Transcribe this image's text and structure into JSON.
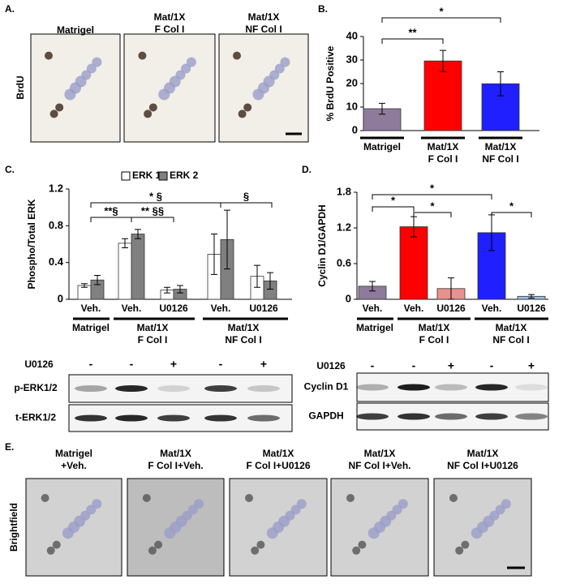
{
  "panel_labels": [
    "A.",
    "B.",
    "C.",
    "D.",
    "E."
  ],
  "panel_a": {
    "row_label": "BrdU",
    "titles": [
      "Matrigel",
      "Mat/1X\nF Col I",
      "Mat/1X\nNF Col I"
    ]
  },
  "chart_data": [
    {
      "type": "bar",
      "ylabel": "% BrdU Positive",
      "categories": [
        "Matrigel",
        "Mat/1X\nF Col I",
        "Mat/1X\nNF Col I"
      ],
      "series": [
        {
          "values": [
            9.3,
            29.6,
            19.9
          ],
          "errors": [
            2.3,
            4.5,
            5.1
          ],
          "colors": [
            "#8e7b9c",
            "#ff0000",
            "#1f1fff"
          ]
        }
      ],
      "ylim": [
        0,
        40
      ],
      "yticks": [
        0,
        10,
        20,
        30,
        40
      ],
      "annotations": [
        "**",
        "*"
      ]
    },
    {
      "type": "bar",
      "ylabel": "Phospho/Total ERK",
      "categories": [
        "Veh.",
        "Veh.",
        "U0126",
        "Veh.",
        "U0126"
      ],
      "groups": [
        "Matrigel",
        "Mat/1X\nF Col I",
        "Mat/1X\nNF Col I"
      ],
      "series": [
        {
          "name": "ERK 1",
          "color": "#ffffff",
          "values": [
            0.15,
            0.61,
            0.1,
            0.49,
            0.25
          ],
          "errors": [
            0.02,
            0.05,
            0.03,
            0.22,
            0.12
          ]
        },
        {
          "name": "ERK 2",
          "color": "#808080",
          "values": [
            0.21,
            0.71,
            0.11,
            0.65,
            0.2
          ],
          "errors": [
            0.05,
            0.05,
            0.04,
            0.32,
            0.09
          ]
        }
      ],
      "ylim": [
        0,
        1.2
      ],
      "yticks": [
        0,
        0.4,
        0.8,
        1.2
      ],
      "annotations": [
        "* §",
        "**§",
        "** §§",
        "§"
      ]
    },
    {
      "type": "bar",
      "ylabel": "Cyclin D1/GAPDH",
      "categories": [
        "Veh.",
        "Veh.",
        "U0126",
        "Veh.",
        "U0126"
      ],
      "groups": [
        "Matrigel",
        "Mat/1X\nF Col I",
        "Mat/1X\nNF Col I"
      ],
      "series": [
        {
          "values": [
            0.22,
            1.22,
            0.18,
            1.12,
            0.05
          ],
          "errors": [
            0.08,
            0.17,
            0.18,
            0.3,
            0.03
          ],
          "colors": [
            "#8e7b9c",
            "#ff0000",
            "#e8928f",
            "#1f1fff",
            "#9dbfe0"
          ]
        }
      ],
      "ylim": [
        0,
        1.8
      ],
      "yticks": [
        0,
        0.6,
        1.2,
        1.8
      ],
      "annotations": [
        "*",
        "*",
        "*",
        "*"
      ]
    }
  ],
  "blots": {
    "treatment_label": "U0126",
    "signs": [
      "-",
      "-",
      "+",
      "-",
      "+"
    ],
    "erk_rows": [
      "p-ERK1/2",
      "t-ERK1/2"
    ],
    "cyclin_rows": [
      "Cyclin D1",
      "GAPDH"
    ]
  },
  "panel_e": {
    "row_label": "Brightfield",
    "titles": [
      "Matrigel\n+Veh.",
      "Mat/1X\nF Col I+Veh.",
      "Mat/1X\nF Col I+U0126",
      "Mat/1X\nNF Col I+Veh.",
      "Mat/1X\nNF Col I+U0126"
    ]
  }
}
